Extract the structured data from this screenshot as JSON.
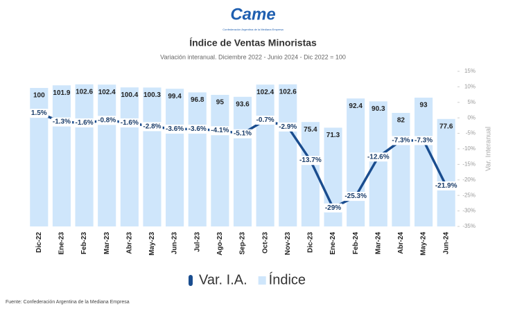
{
  "logo": {
    "text": "Came",
    "subtitle": "Confederación Argentina de la Mediana Empresa"
  },
  "chart_data": {
    "type": "bar",
    "title": "Índice de Ventas Minoristas",
    "subtitle": "Variación interanual. Diciembre 2022 - Junio 2024 - Dic 2022 = 100",
    "categories": [
      "Dic-22",
      "Ene-23",
      "Feb-23",
      "Mar-23",
      "Abr-23",
      "May-23",
      "Jun-23",
      "Jul-23",
      "Ago-23",
      "Sep-23",
      "Oct-23",
      "Nov-23",
      "Dic-23",
      "Ene-24",
      "Feb-24",
      "Mar-24",
      "Abr-24",
      "May-24",
      "Jun-24"
    ],
    "series": [
      {
        "name": "Var. I.A.",
        "type": "line",
        "axis": "y2",
        "color": "#1a4d8f",
        "values": [
          1.5,
          -1.3,
          -1.6,
          -0.8,
          -1.6,
          -2.8,
          -3.6,
          -3.6,
          -4.1,
          -5.1,
          -0.7,
          -2.9,
          -13.7,
          -29,
          -25.3,
          -12.6,
          -7.3,
          -7.3,
          -21.9
        ],
        "value_labels": [
          "1.5%",
          "-1.3%",
          "-1.6%",
          "-0.8%",
          "-1.6%",
          "-2.8%",
          "-3.6%",
          "-3.6%",
          "-4.1%",
          "-5.1%",
          "-0.7%",
          "-2.9%",
          "-13.7%",
          "-29%",
          "-25.3%",
          "-12.6%",
          "-7.3%",
          "-7.3%",
          "-21.9%"
        ]
      },
      {
        "name": "Índice",
        "type": "bar",
        "color": "#cfe6fb",
        "values": [
          100,
          101.9,
          102.6,
          102.4,
          100.4,
          100.3,
          99.4,
          96.8,
          95,
          93.6,
          102.4,
          102.6,
          75.4,
          71.3,
          92.4,
          90.3,
          82,
          93,
          77.6
        ]
      }
    ],
    "ylim": [
      0,
      112
    ],
    "y2lim": [
      -35,
      15
    ],
    "y2ticks": [
      {
        "value": 15,
        "label": "15%"
      },
      {
        "value": 10,
        "label": "10%"
      },
      {
        "value": 5,
        "label": "5%"
      },
      {
        "value": 0,
        "label": "0%"
      },
      {
        "value": -5,
        "label": "-5%"
      },
      {
        "value": -10,
        "label": "-10%"
      },
      {
        "value": -15,
        "label": "-15%"
      },
      {
        "value": -20,
        "label": "-20%"
      },
      {
        "value": -25,
        "label": "-25%"
      },
      {
        "value": -30,
        "label": "-30%"
      },
      {
        "value": -35,
        "label": "-35%"
      }
    ],
    "y2label": "Var. Interanual",
    "legend": "bottom"
  },
  "source": "Fuente: Confederación Argentina de la Mediana Empresa"
}
